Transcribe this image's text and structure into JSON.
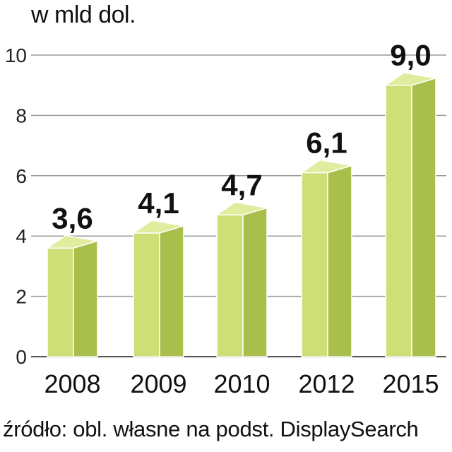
{
  "chart_data": {
    "type": "bar",
    "title": "w mld dol.",
    "categories": [
      "2008",
      "2009",
      "2010",
      "2012",
      "2015"
    ],
    "values": [
      3.6,
      4.1,
      4.7,
      6.1,
      9.0
    ],
    "value_labels": [
      "3,6",
      "4,1",
      "4,7",
      "6,1",
      "9,0"
    ],
    "y_ticks": [
      "0",
      "2",
      "4",
      "6",
      "8",
      "10"
    ],
    "ylim": [
      0,
      10
    ],
    "grid": true,
    "xlabel": "",
    "ylabel": "",
    "colors": {
      "bar_front": "#cfdf78",
      "bar_side": "#a9bf4c",
      "bar_top": "#e2ec9e",
      "bar_edge": "#ffffff",
      "grid": "#9a9a9a"
    }
  },
  "source": "źródło: obl. własne na podst. DisplaySearch"
}
